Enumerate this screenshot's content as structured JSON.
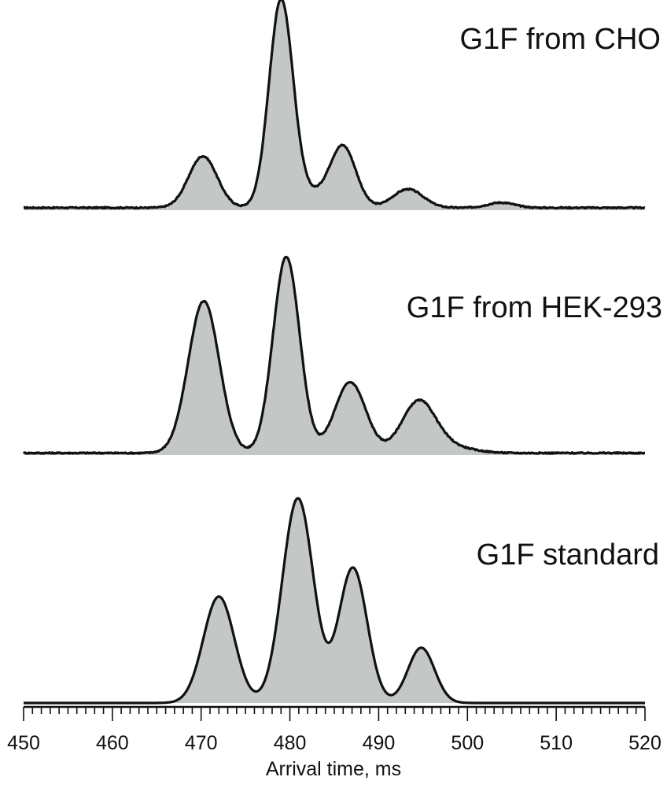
{
  "chart_data": {
    "type": "area",
    "xlabel": "Arrival time, ms",
    "xlim": [
      450,
      520
    ],
    "x_major_ticks": [
      450,
      460,
      470,
      480,
      490,
      500,
      510,
      520
    ],
    "x_minor_step": 1,
    "y_relative": true,
    "fill_color": "#c3c8c6",
    "line_color": "#111111",
    "panels": [
      {
        "label": "G1F from CHO",
        "baseline": 0.012,
        "peaks": [
          {
            "x": 470.2,
            "height": 0.25,
            "width": 1.6
          },
          {
            "x": 479.0,
            "height": 1.0,
            "width": 1.35
          },
          {
            "x": 486.0,
            "height": 0.29,
            "width": 1.45
          },
          {
            "x": 482.5,
            "height": 0.06,
            "width": 2.0
          },
          {
            "x": 493.3,
            "height": 0.09,
            "width": 1.7
          },
          {
            "x": 503.8,
            "height": 0.025,
            "width": 1.5
          }
        ]
      },
      {
        "label": "G1F from HEK-293",
        "baseline": 0.01,
        "peaks": [
          {
            "x": 470.3,
            "height": 0.75,
            "width": 1.75
          },
          {
            "x": 479.6,
            "height": 0.97,
            "width": 1.5
          },
          {
            "x": 486.8,
            "height": 0.35,
            "width": 1.75
          },
          {
            "x": 494.5,
            "height": 0.25,
            "width": 1.9
          },
          {
            "x": 498.0,
            "height": 0.03,
            "width": 2.5
          }
        ]
      },
      {
        "label": "G1F standard",
        "baseline": 0.0,
        "peaks": [
          {
            "x": 472.0,
            "height": 0.52,
            "width": 1.75
          },
          {
            "x": 480.9,
            "height": 1.0,
            "width": 1.75
          },
          {
            "x": 487.1,
            "height": 0.66,
            "width": 1.6
          },
          {
            "x": 494.8,
            "height": 0.27,
            "width": 1.5
          }
        ]
      }
    ]
  }
}
